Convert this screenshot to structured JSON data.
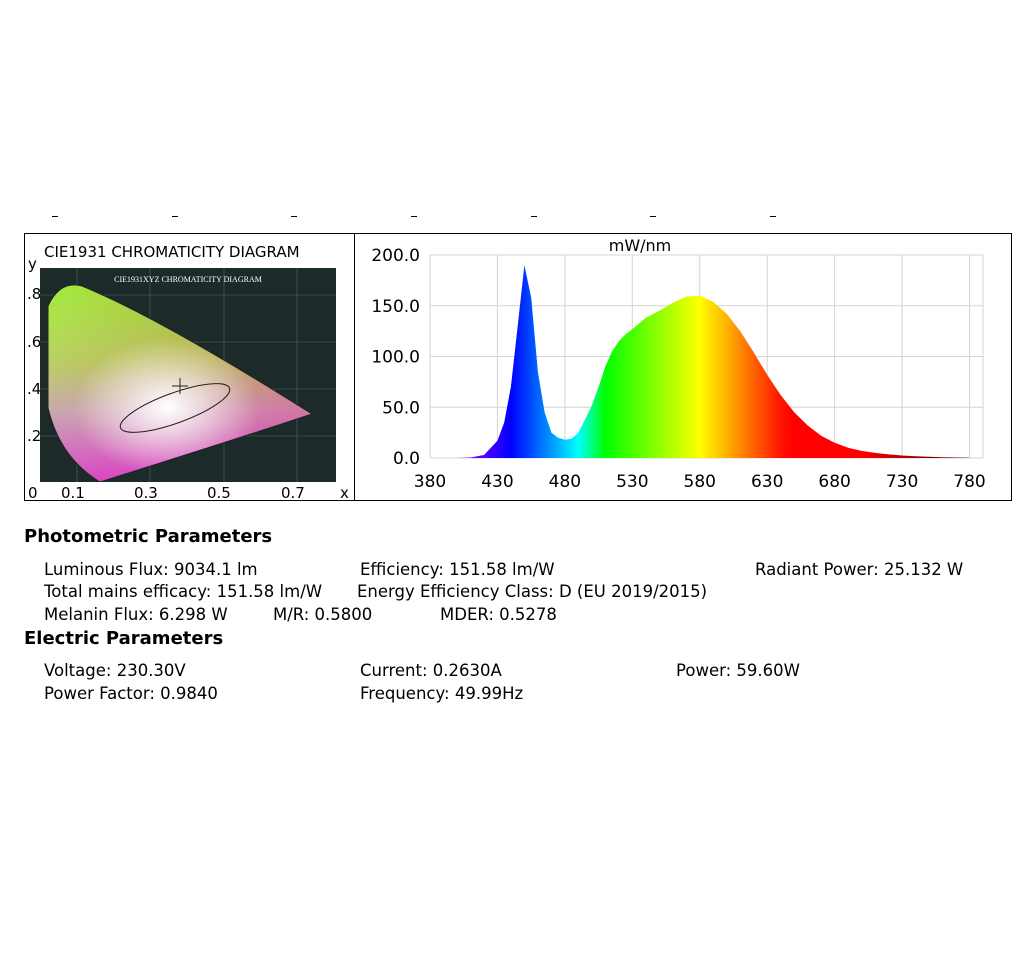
{
  "cie": {
    "title": "CIE1931 CHROMATICITY DIAGRAM",
    "inner_title": "CIE1931XYZ CHROMATICITY DIAGRAM",
    "x_axis_label": "x",
    "y_axis_label": "y",
    "x_ticks": [
      "0",
      "0.1",
      "0.3",
      "0.5",
      "0.7"
    ],
    "y_ticks": [
      ".8",
      ".6",
      ".4",
      ".2"
    ],
    "colors": {
      "background": "#1c2a2a",
      "grid": "#556868"
    }
  },
  "chart_data": {
    "type": "area",
    "ylabel": "mW/nm",
    "xlabel": "",
    "x_ticks": [
      "380",
      "430",
      "480",
      "530",
      "580",
      "630",
      "680",
      "730",
      "780"
    ],
    "y_ticks": [
      "200.0",
      "150.0",
      "100.0",
      "50.0",
      "0.0"
    ],
    "xlim": [
      380,
      790
    ],
    "ylim": [
      0,
      200
    ],
    "grid": true,
    "fill": "visible-spectrum gradient",
    "series": [
      {
        "x": [
          400,
          410,
          420,
          430,
          435,
          440,
          445,
          450,
          455,
          460,
          465,
          470,
          475,
          480,
          485,
          490,
          495,
          500,
          505,
          510,
          515,
          520,
          525,
          530,
          540,
          550,
          560,
          570,
          580,
          590,
          600,
          610,
          620,
          630,
          640,
          650,
          660,
          670,
          680,
          690,
          700,
          710,
          720,
          730,
          740,
          750,
          760,
          770,
          780
        ],
        "values": [
          0,
          0.5,
          3,
          17,
          35,
          70,
          130,
          190,
          158,
          85,
          45,
          25,
          20,
          18,
          19,
          25,
          38,
          52,
          70,
          90,
          105,
          115,
          122,
          127,
          138,
          145,
          153,
          159,
          160,
          154,
          142,
          125,
          104,
          82,
          62,
          45,
          32,
          22,
          15,
          10,
          7,
          5,
          3.5,
          2.5,
          1.8,
          1.2,
          0.8,
          0.5,
          0.3
        ]
      }
    ]
  },
  "photometric": {
    "heading": "Photometric Parameters",
    "luminous_flux": "Luminous Flux: 9034.1 lm",
    "efficiency": "Efficiency: 151.58 lm/W",
    "radiant_power": "Radiant Power: 25.132 W",
    "total_mains_efficacy": "Total mains efficacy: 151.58 lm/W",
    "energy_class": "Energy Efficiency Class: D (EU 2019/2015)",
    "melanin_flux": "Melanin Flux: 6.298 W",
    "mr": "M/R: 0.5800",
    "mder": "MDER: 0.5278"
  },
  "electric": {
    "heading": "Electric Parameters",
    "voltage": "Voltage: 230.30V",
    "current": "Current: 0.2630A",
    "power": "Power: 59.60W",
    "power_factor": "Power Factor: 0.9840",
    "frequency": "Frequency: 49.99Hz"
  }
}
